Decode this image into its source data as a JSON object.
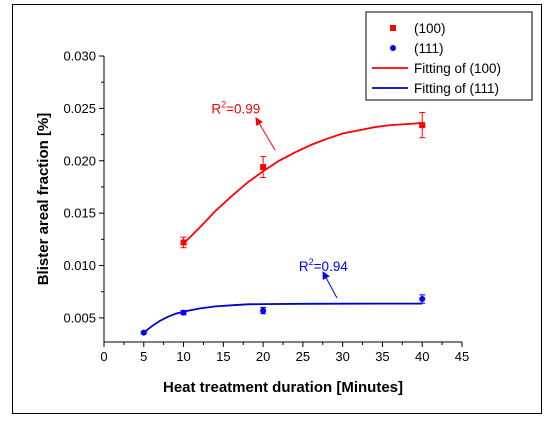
{
  "chart_data": {
    "type": "scatter",
    "xlabel": "Heat treatment duration [Minutes]",
    "ylabel": "Blister areal fraction [%]",
    "xlim": [
      0,
      45
    ],
    "ylim": [
      0.0027,
      0.03
    ],
    "x_ticks": [
      "0",
      "5",
      "10",
      "15",
      "20",
      "25",
      "30",
      "35",
      "40",
      "45"
    ],
    "y_ticks": [
      "0.005",
      "0.010",
      "0.015",
      "0.020",
      "0.025",
      "0.030"
    ],
    "grid": false,
    "legend_position": "top-right",
    "series": [
      {
        "name": "(100)",
        "color": "#ff0000",
        "marker": "square",
        "x": [
          10,
          20,
          40
        ],
        "y": [
          0.0122,
          0.0194,
          0.0234
        ],
        "err": [
          0.0005,
          0.001,
          0.0012
        ]
      },
      {
        "name": "(111)",
        "color": "#0000ff",
        "marker": "circle",
        "x": [
          5,
          10,
          20,
          40
        ],
        "y": [
          0.0036,
          0.0055,
          0.0057,
          0.0068
        ],
        "err": [
          0.0001,
          0.0002,
          0.0003,
          0.0004
        ]
      }
    ],
    "fits": [
      {
        "name": "Fitting of (100)",
        "color": "#ff0000",
        "x": [
          10,
          12,
          14,
          16,
          18,
          20,
          22,
          24,
          26,
          28,
          30,
          32,
          34,
          36,
          38,
          40
        ],
        "y": [
          0.0121,
          0.0136,
          0.0152,
          0.0166,
          0.0179,
          0.019,
          0.02,
          0.0208,
          0.0215,
          0.0221,
          0.0226,
          0.0229,
          0.0232,
          0.0234,
          0.0235,
          0.0236
        ]
      },
      {
        "name": "Fitting of (111)",
        "color": "#0000cc",
        "x": [
          5,
          6,
          7,
          8,
          9,
          10,
          12,
          14,
          16,
          18,
          20,
          25,
          30,
          35,
          40
        ],
        "y": [
          0.0036,
          0.0042,
          0.0047,
          0.0051,
          0.0054,
          0.0056,
          0.0059,
          0.0061,
          0.0062,
          0.0063,
          0.00632,
          0.00635,
          0.00636,
          0.00637,
          0.00637
        ]
      }
    ],
    "annotations": [
      {
        "base": "R",
        "sup": "2",
        "rest": "=0.99",
        "color": "#ff0000",
        "x": 13.5,
        "y": 0.0245
      },
      {
        "base": "R",
        "sup": "2",
        "rest": "=0.94",
        "color": "#0000ff",
        "x": 24.5,
        "y": 0.0095
      }
    ]
  }
}
